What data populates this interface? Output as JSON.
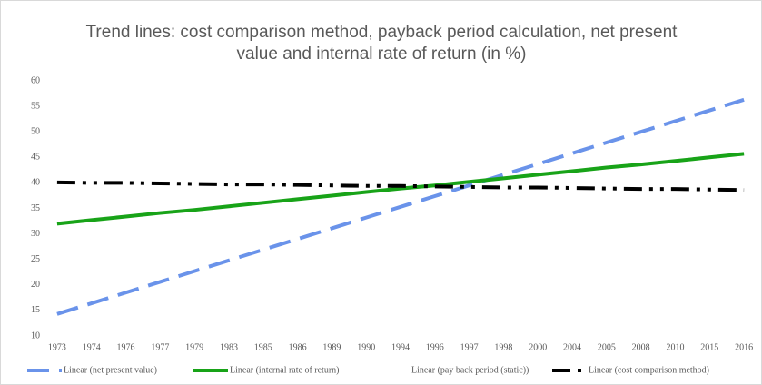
{
  "chart_data": {
    "type": "line",
    "title": "Trend lines: cost comparison method, payback period calculation, net present value and internal rate of return (in %)",
    "categories": [
      "1973",
      "1974",
      "1976",
      "1977",
      "1979",
      "1983",
      "1985",
      "1986",
      "1989",
      "1990",
      "1994",
      "1996",
      "1997",
      "1998",
      "2000",
      "2004",
      "2005",
      "2008",
      "2010",
      "2015",
      "2016"
    ],
    "ylim": [
      10,
      60
    ],
    "yticks": [
      10,
      15,
      20,
      25,
      30,
      35,
      40,
      45,
      50,
      55,
      60
    ],
    "grid": false,
    "legend": "bottom",
    "series": [
      {
        "name": "Linear (net present value)",
        "color": "#6a93ea",
        "dash": "24,11",
        "values": [
          14.3,
          16.4,
          18.5,
          20.6,
          22.7,
          24.8,
          26.9,
          29.0,
          31.1,
          33.2,
          35.3,
          37.4,
          39.5,
          41.6,
          43.7,
          45.8,
          47.9,
          50.0,
          52.1,
          54.2,
          56.3
        ]
      },
      {
        "name": "Linear (internal rate of return)",
        "color": "#18a318",
        "dash": "none",
        "values": [
          32.0,
          32.7,
          33.4,
          34.1,
          34.7,
          35.4,
          36.1,
          36.8,
          37.5,
          38.2,
          38.9,
          39.5,
          40.2,
          40.9,
          41.6,
          42.3,
          43.0,
          43.6,
          44.3,
          45.0,
          45.7
        ]
      },
      {
        "name": "Linear (pay back period (static))",
        "color": "#ffffff",
        "dash": "none",
        "values": [
          null,
          null,
          null,
          null,
          null,
          null,
          null,
          null,
          null,
          null,
          null,
          null,
          null,
          null,
          null,
          null,
          null,
          null,
          null,
          null,
          null
        ]
      },
      {
        "name": "Linear (cost comparison method)",
        "color": "#000000",
        "dash": "20,8,4,8,4,8",
        "values": [
          40.1,
          40.0,
          40.0,
          39.9,
          39.8,
          39.7,
          39.7,
          39.6,
          39.5,
          39.4,
          39.4,
          39.3,
          39.2,
          39.1,
          39.1,
          39.0,
          38.9,
          38.8,
          38.8,
          38.7,
          38.6
        ]
      }
    ]
  }
}
